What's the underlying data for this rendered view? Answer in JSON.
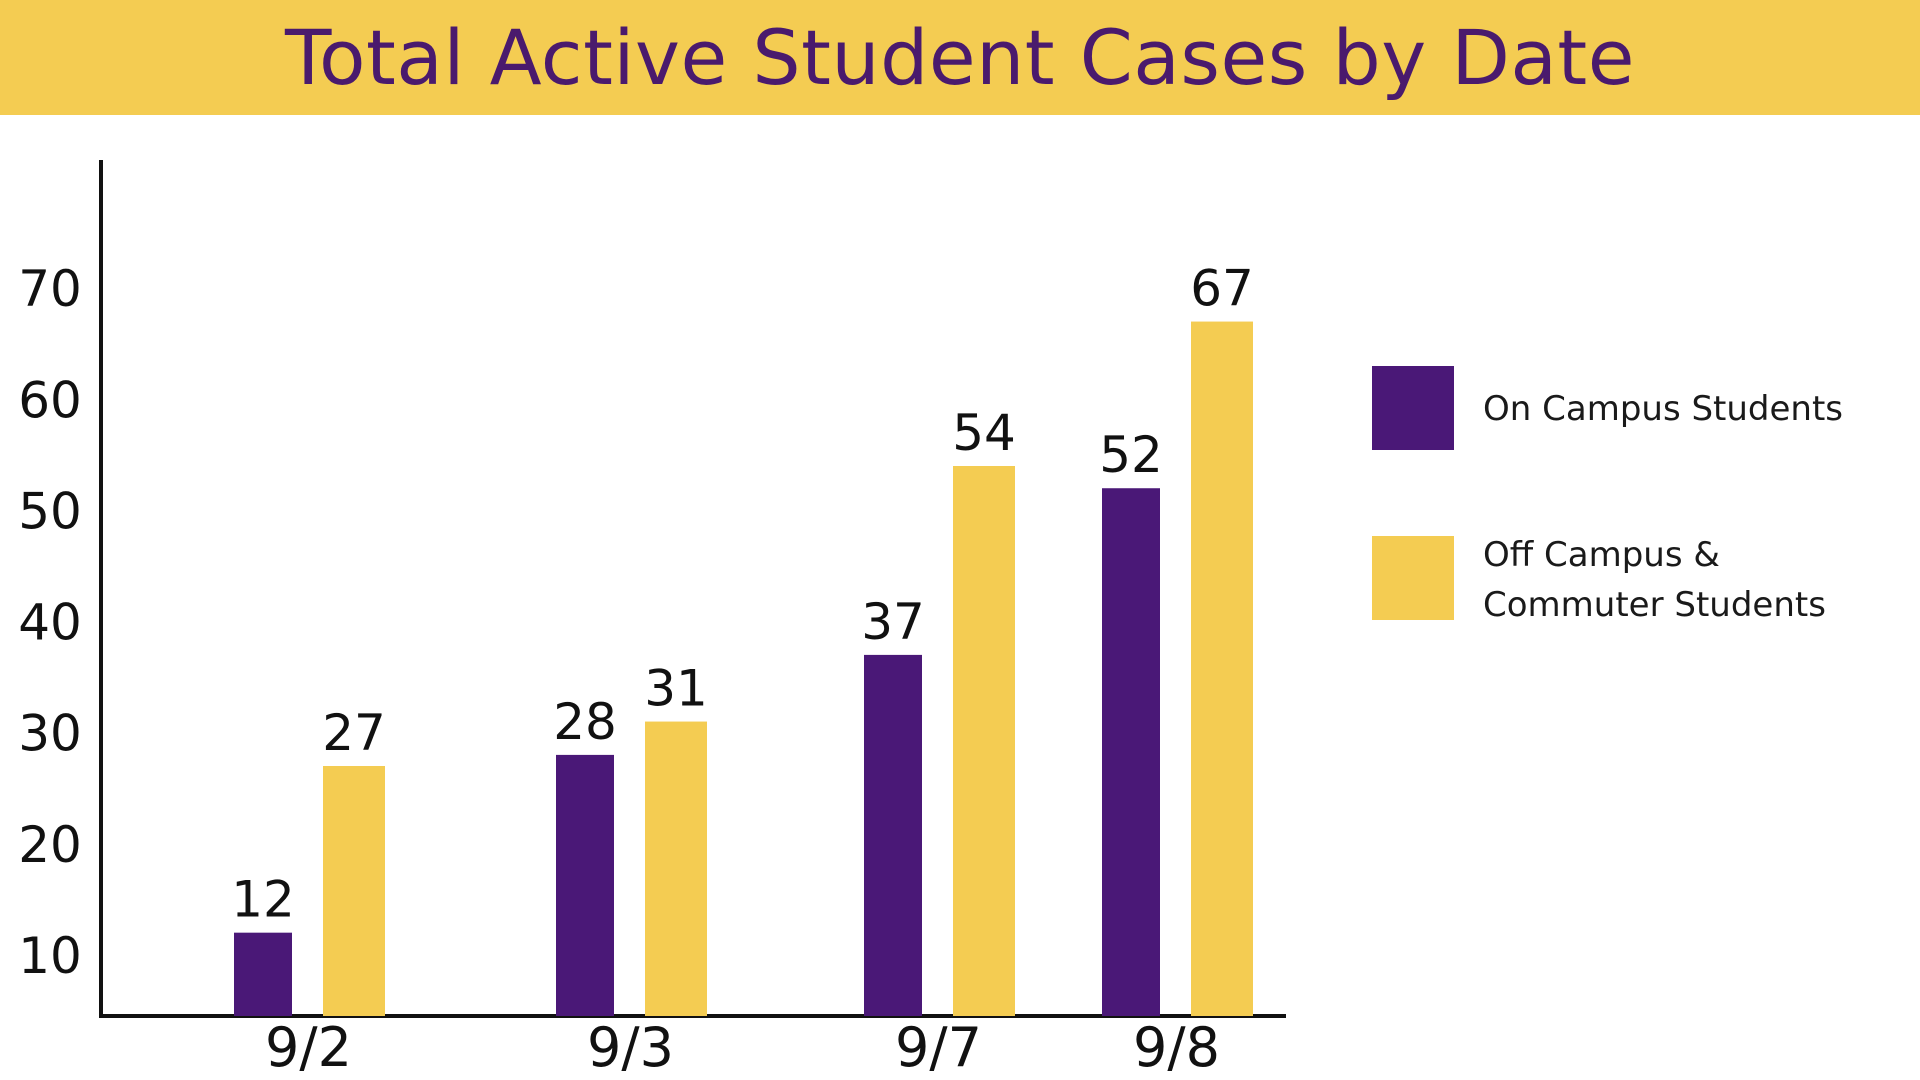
{
  "chart_data": {
    "type": "bar",
    "title": "Total Active Student Cases by Date",
    "categories": [
      "9/2",
      "9/3",
      "9/7",
      "9/8"
    ],
    "series": [
      {
        "name": "On Campus Students",
        "values": [
          12,
          28,
          37,
          52
        ],
        "color": "#4a1877"
      },
      {
        "name": "Off Campus & Commuter Students",
        "values": [
          27,
          31,
          54,
          67
        ],
        "color": "#f4cc52"
      }
    ],
    "yticks": [
      10,
      20,
      30,
      40,
      50,
      60,
      70
    ],
    "ylim": [
      4.5,
      80
    ],
    "legend_position": "right",
    "grid": false,
    "data_labels": true
  },
  "legend": [
    {
      "lines": [
        "On Campus Students"
      ]
    },
    {
      "lines": [
        "Off Campus &",
        "Commuter Students"
      ]
    }
  ]
}
